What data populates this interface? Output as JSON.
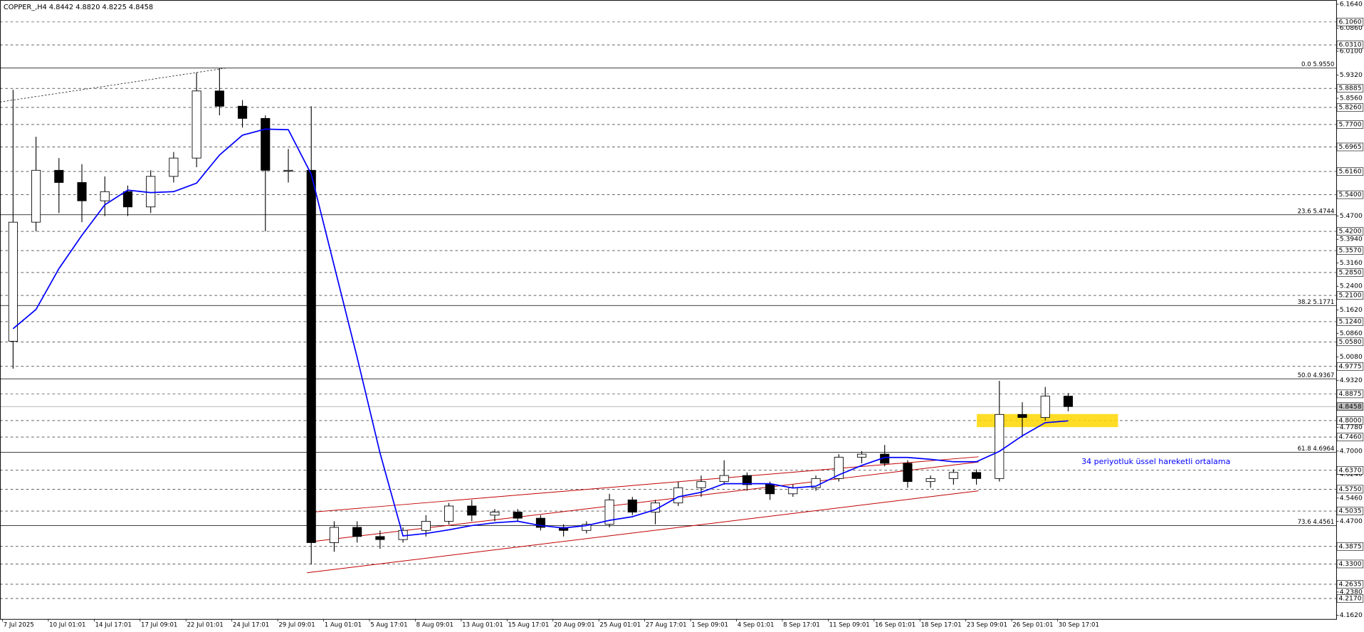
{
  "chart_data": {
    "type": "candlestick",
    "title": "COPPER_,H4  4.8442 4.8820 4.8225 4.8458",
    "annotation": "34 periyotluk üssel hareketli ortalama",
    "categories": [
      "7 Jul 2025",
      null,
      "10 Jul 01:01",
      null,
      "14 Jul 17:01",
      null,
      "17 Jul 09:01",
      null,
      "22 Jul 01:01",
      null,
      "24 Jul 17:01",
      null,
      "29 Jul 09:01",
      null,
      "1 Aug 01:01",
      null,
      "5 Aug 17:01",
      null,
      "8 Aug 09:01",
      null,
      "13 Aug 01:01",
      null,
      "15 Aug 17:01",
      null,
      "20 Aug 09:01",
      null,
      "25 Aug 01:01",
      null,
      "27 Aug 17:01",
      null,
      "1 Sep 09:01",
      null,
      "4 Sep 01:01",
      null,
      "8 Sep 17:01",
      null,
      "11 Sep 09:01",
      null,
      "16 Sep 01:01",
      null,
      "18 Sep 17:01",
      null,
      "23 Sep 09:01",
      null,
      "26 Sep 01:01",
      null,
      "30 Sep 17:01"
    ],
    "open": [
      5.06,
      5.45,
      5.62,
      5.58,
      5.52,
      5.55,
      5.5,
      5.6,
      5.66,
      5.88,
      5.83,
      5.79,
      5.62,
      5.62,
      4.4,
      4.45,
      4.42,
      4.41,
      4.44,
      4.47,
      4.52,
      4.49,
      4.5,
      4.48,
      4.45,
      4.44,
      4.46,
      4.54,
      4.5,
      4.53,
      4.58,
      4.6,
      4.62,
      4.59,
      4.56,
      4.58,
      4.61,
      4.68,
      4.69,
      4.66,
      4.6,
      4.61,
      4.63,
      4.61,
      4.82,
      4.81,
      4.88
    ],
    "high": [
      5.884,
      5.73,
      5.66,
      5.64,
      5.6,
      5.57,
      5.62,
      5.68,
      5.94,
      5.955,
      5.85,
      5.8,
      5.69,
      5.83,
      4.47,
      4.47,
      4.44,
      4.45,
      4.49,
      4.53,
      4.54,
      4.51,
      4.51,
      4.49,
      4.46,
      4.47,
      4.56,
      4.55,
      4.54,
      4.6,
      4.62,
      4.67,
      4.63,
      4.6,
      4.59,
      4.62,
      4.69,
      4.7,
      4.72,
      4.67,
      4.62,
      4.64,
      4.64,
      4.93,
      4.86,
      4.91,
      4.89
    ],
    "low": [
      4.97,
      5.42,
      5.48,
      5.45,
      5.47,
      5.47,
      5.48,
      5.58,
      5.63,
      5.8,
      5.76,
      5.42,
      5.58,
      4.328,
      4.37,
      4.4,
      4.38,
      4.4,
      4.42,
      4.46,
      4.47,
      4.47,
      4.47,
      4.44,
      4.42,
      4.43,
      4.45,
      4.49,
      4.46,
      4.52,
      4.55,
      4.59,
      4.57,
      4.54,
      4.55,
      4.57,
      4.6,
      4.66,
      4.65,
      4.58,
      4.58,
      4.59,
      4.59,
      4.6,
      4.75,
      4.8,
      4.83
    ],
    "close": [
      5.45,
      5.62,
      5.58,
      5.52,
      5.55,
      5.5,
      5.6,
      5.66,
      5.88,
      5.83,
      5.79,
      5.62,
      5.62,
      4.4,
      4.45,
      4.42,
      4.41,
      4.44,
      4.47,
      4.52,
      4.49,
      4.5,
      4.48,
      4.45,
      4.44,
      4.46,
      4.54,
      4.5,
      4.53,
      4.58,
      4.6,
      4.62,
      4.59,
      4.56,
      4.58,
      4.61,
      4.68,
      4.69,
      4.66,
      4.6,
      4.61,
      4.63,
      4.61,
      4.82,
      4.81,
      4.88,
      4.8458
    ],
    "up_color": "#ffffff",
    "down_color": "#000000",
    "wick_color": "#000000",
    "ema": {
      "color": "#0000ff",
      "values": [
        5.101,
        5.164,
        5.298,
        5.407,
        5.507,
        5.555,
        5.547,
        5.55,
        5.578,
        5.67,
        5.735,
        5.755,
        5.753,
        5.607,
        5.307,
        5.007,
        4.693,
        4.422,
        4.43,
        4.442,
        4.456,
        4.465,
        4.47,
        4.456,
        4.448,
        4.456,
        4.473,
        4.485,
        4.508,
        4.55,
        4.565,
        4.593,
        4.593,
        4.593,
        4.579,
        4.585,
        4.622,
        4.653,
        4.679,
        4.679,
        4.673,
        4.665,
        4.665,
        4.699,
        4.75,
        4.793,
        4.799
      ]
    },
    "ylim": [
      4.15,
      6.178
    ],
    "yticks": [
      {
        "value": 6.164,
        "label": "6.1640"
      },
      {
        "value": 6.086,
        "label": "6.0860"
      },
      {
        "value": 6.01,
        "label": "6.0100"
      },
      {
        "value": 5.932,
        "label": "5.9320"
      },
      {
        "value": 5.856,
        "label": "5.8560"
      },
      {
        "value": 5.47,
        "label": "5.4700"
      },
      {
        "value": 5.394,
        "label": "5.3940"
      },
      {
        "value": 5.316,
        "label": "5.3160"
      },
      {
        "value": 5.24,
        "label": "5.2400"
      },
      {
        "value": 5.162,
        "label": "5.1620"
      },
      {
        "value": 5.086,
        "label": "5.0860"
      },
      {
        "value": 5.008,
        "label": "5.0080"
      },
      {
        "value": 4.932,
        "label": "4.9320"
      },
      {
        "value": 4.778,
        "label": "4.7780"
      },
      {
        "value": 4.7,
        "label": "4.7000"
      },
      {
        "value": 4.624,
        "label": "4.6240"
      },
      {
        "value": 4.546,
        "label": "4.5460"
      },
      {
        "value": 4.47,
        "label": "4.4700"
      },
      {
        "value": 4.238,
        "label": "4.2380"
      },
      {
        "value": 4.162,
        "label": "4.1620"
      }
    ],
    "levels": [
      {
        "value": 6.106,
        "label": "6.1060"
      },
      {
        "value": 6.031,
        "label": "6.0310"
      },
      5.8885,
      {
        "value": 5.826,
        "label": "5.8260"
      },
      {
        "value": 5.77,
        "label": "5.7700"
      },
      5.6965,
      {
        "value": 5.616,
        "label": "5.6160"
      },
      {
        "value": 5.54,
        "label": "5.5400"
      },
      {
        "value": 5.42,
        "label": "5.4200"
      },
      {
        "value": 5.357,
        "label": "5.3570"
      },
      {
        "value": 5.285,
        "label": "5.2850"
      },
      {
        "value": 5.21,
        "label": "5.2100"
      },
      {
        "value": 5.124,
        "label": "5.1240"
      },
      {
        "value": 5.058,
        "label": "5.0580"
      },
      4.9775,
      4.8875,
      {
        "value": 4.8,
        "label": "4.8000"
      },
      {
        "value": 4.746,
        "label": "4.7460"
      },
      {
        "value": 4.637,
        "label": "4.6370"
      },
      {
        "value": 4.575,
        "label": "4.5750"
      },
      4.5035,
      4.3875,
      {
        "value": 4.33,
        "label": "4.3300"
      },
      4.2635,
      {
        "value": 4.217,
        "label": "4.2170"
      }
    ],
    "last_price": 4.8458,
    "fib_levels": [
      {
        "value": 5.955,
        "label": "0.0 5.9550"
      },
      {
        "value": 5.4744,
        "label": "23.6 5.4744"
      },
      {
        "value": 5.1771,
        "label": "38.2 5.1771"
      },
      {
        "value": 4.9367,
        "label": "50.0 4.9367"
      },
      {
        "value": 4.6964,
        "label": "61.8 4.6964"
      },
      {
        "value": 4.4561,
        "label": "73.6 4.4561"
      }
    ]
  }
}
